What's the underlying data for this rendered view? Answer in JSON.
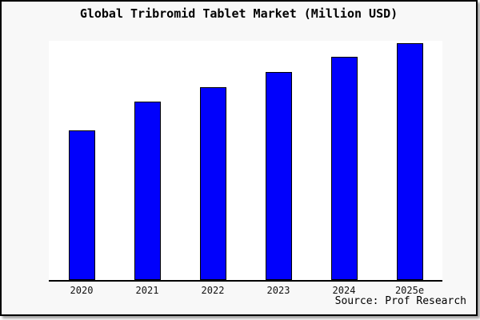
{
  "title": "Global Tribromid Tablet Market (Million USD)",
  "source": "Source: Prof Research",
  "chart_data": {
    "type": "bar",
    "title": "Global Tribromid Tablet Market (Million USD)",
    "categories": [
      "2020",
      "2021",
      "2022",
      "2023",
      "2024",
      "2025e"
    ],
    "values_pct_of_plot_height": [
      62.8,
      74.8,
      81.1,
      87.4,
      93.7,
      99.3
    ],
    "value_note": "No y-axis, ticks, gridlines or data labels are shown in the chart; values are relative bar heights measured as percent of plot-area height",
    "xlabel": "",
    "ylabel": "",
    "ylim_pct": [
      0,
      100
    ],
    "grid": false,
    "legend": "none",
    "bar_color": "#0101fc",
    "bar_border_color": "#000000",
    "background_color": "#f8f8f8",
    "plot_background_color": "#ffffff",
    "axis_color": "#000000"
  }
}
